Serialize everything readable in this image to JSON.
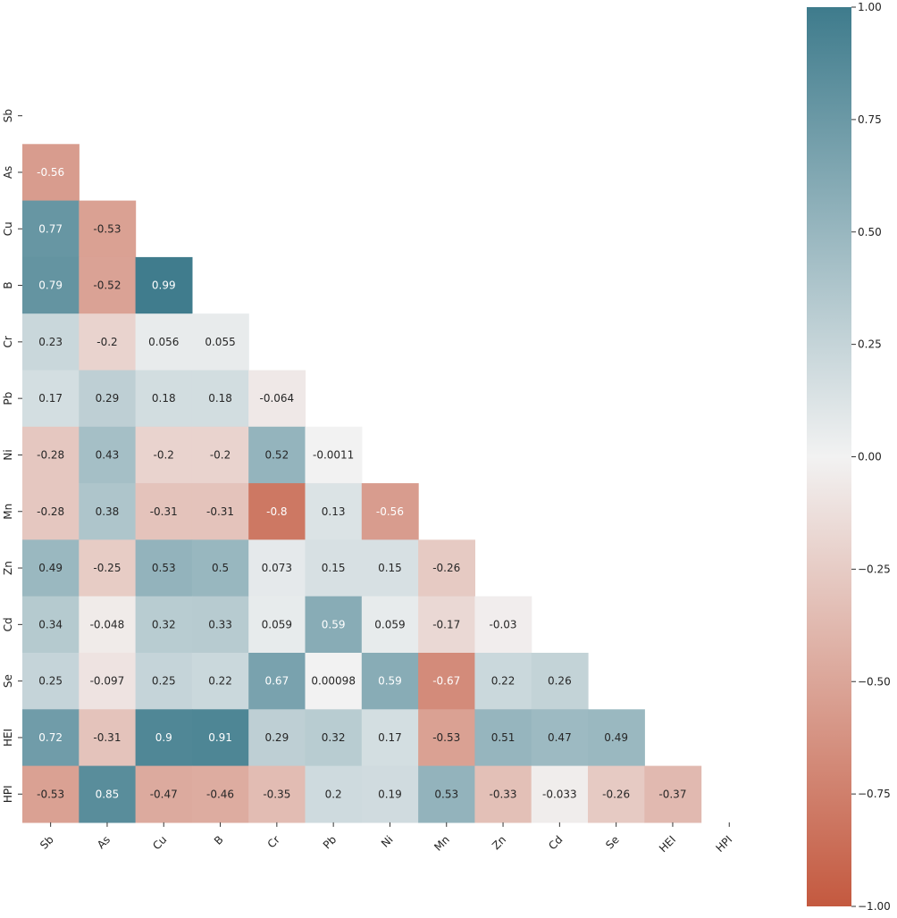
{
  "chart_data": {
    "type": "heatmap",
    "title": "",
    "xlabel": "",
    "ylabel": "",
    "mask": "upper-triangle-including-diagonal",
    "variables": [
      "Sb",
      "As",
      "Cu",
      "B",
      "Cr",
      "Pb",
      "Ni",
      "Mn",
      "Zn",
      "Cd",
      "Se",
      "HEI",
      "HPI"
    ],
    "values": [
      [
        null,
        null,
        null,
        null,
        null,
        null,
        null,
        null,
        null,
        null,
        null,
        null,
        null
      ],
      [
        -0.56,
        null,
        null,
        null,
        null,
        null,
        null,
        null,
        null,
        null,
        null,
        null,
        null
      ],
      [
        0.77,
        -0.53,
        null,
        null,
        null,
        null,
        null,
        null,
        null,
        null,
        null,
        null,
        null
      ],
      [
        0.79,
        -0.52,
        0.99,
        null,
        null,
        null,
        null,
        null,
        null,
        null,
        null,
        null,
        null
      ],
      [
        0.23,
        -0.2,
        0.056,
        0.055,
        null,
        null,
        null,
        null,
        null,
        null,
        null,
        null,
        null
      ],
      [
        0.17,
        0.29,
        0.18,
        0.18,
        -0.064,
        null,
        null,
        null,
        null,
        null,
        null,
        null,
        null
      ],
      [
        -0.28,
        0.43,
        -0.2,
        -0.2,
        0.52,
        -0.0011,
        null,
        null,
        null,
        null,
        null,
        null,
        null
      ],
      [
        -0.28,
        0.38,
        -0.31,
        -0.31,
        -0.8,
        0.13,
        -0.56,
        null,
        null,
        null,
        null,
        null,
        null
      ],
      [
        0.49,
        -0.25,
        0.53,
        0.5,
        0.073,
        0.15,
        0.15,
        -0.26,
        null,
        null,
        null,
        null,
        null
      ],
      [
        0.34,
        -0.048,
        0.32,
        0.33,
        0.059,
        0.59,
        0.059,
        -0.17,
        -0.03,
        null,
        null,
        null,
        null
      ],
      [
        0.25,
        -0.097,
        0.25,
        0.22,
        0.67,
        0.00098,
        0.59,
        -0.67,
        0.22,
        0.26,
        null,
        null,
        null
      ],
      [
        0.72,
        -0.31,
        0.9,
        0.91,
        0.29,
        0.32,
        0.17,
        -0.53,
        0.51,
        0.47,
        0.49,
        null,
        null
      ],
      [
        -0.53,
        0.85,
        -0.47,
        -0.46,
        -0.35,
        0.2,
        0.19,
        0.53,
        -0.33,
        -0.033,
        -0.26,
        -0.37,
        null
      ]
    ],
    "colorbar": {
      "range": [
        -1.0,
        1.0
      ],
      "tick_values": [
        1.0,
        0.75,
        0.5,
        0.25,
        0.0,
        -0.25,
        -0.5,
        -0.75,
        -1.0
      ],
      "tick_labels": [
        "1.00",
        "0.75",
        "0.50",
        "0.25",
        "0.00",
        "−0.25",
        "−0.50",
        "−0.75",
        "−1.00"
      ]
    },
    "colors": {
      "negative": "#c4593f",
      "neutral": "#f2f2f2",
      "positive": "#3e7b8c"
    },
    "grid": false,
    "legend_placement": "right"
  }
}
